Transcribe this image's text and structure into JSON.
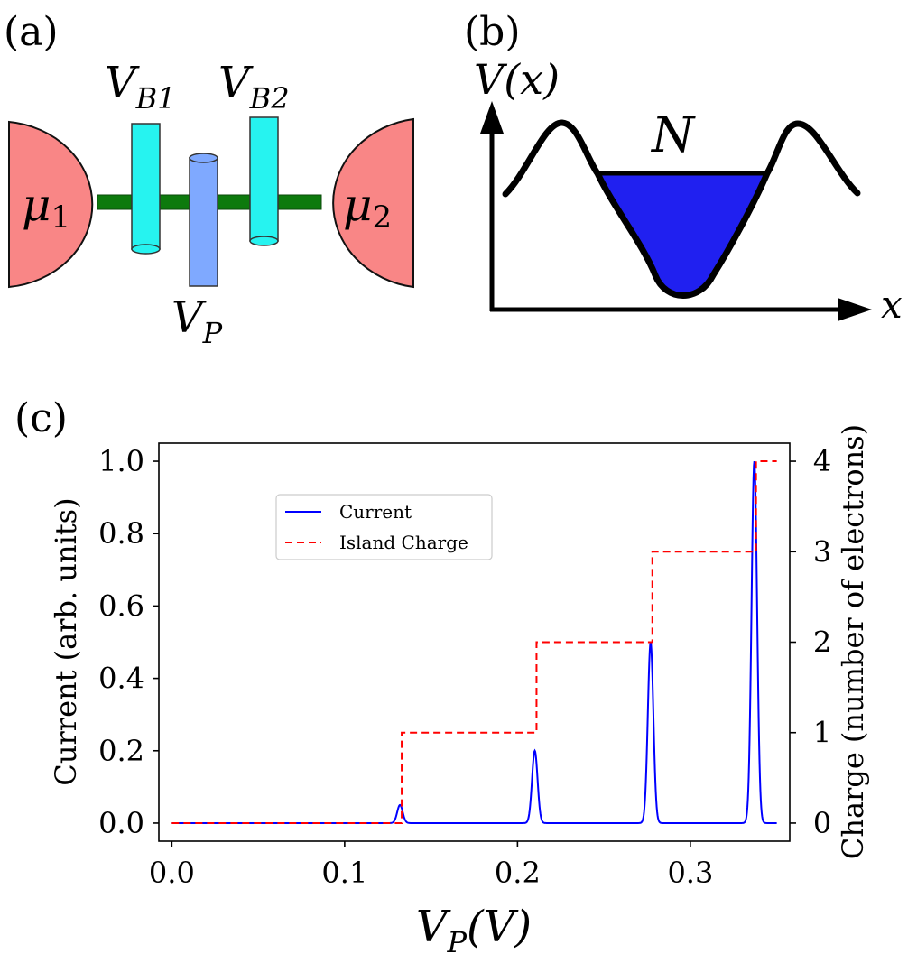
{
  "panels": {
    "a": {
      "label": "(a)",
      "mu1_sym": "μ",
      "mu1_sub": "1",
      "mu2_sym": "μ",
      "mu2_sub": "2",
      "vb1_sym": "V",
      "vb1_sub": "B1",
      "vb2_sym": "V",
      "vb2_sub": "B2",
      "vp_sym": "V",
      "vp_sub": "P",
      "colors": {
        "lead": "#f98686",
        "barrier_gate": "#26f3f0",
        "plunger_gate": "#7fa9ff",
        "wire": "#0d7a0d"
      }
    },
    "b": {
      "label": "(b)",
      "y_axis": "V(x)",
      "x_axis": "x",
      "fill_label": "N",
      "colors": {
        "fill": "#2020f0",
        "curve": "#000000"
      }
    },
    "c": {
      "label": "(c)"
    }
  },
  "chart_data": {
    "type": "line",
    "xlabel_sym": "V",
    "xlabel_sub": "P",
    "xlabel_tail": "(V)",
    "ylabel_left": "Current (arb. units)",
    "ylabel_right": "Charge (number of electrons)",
    "xlim": [
      -0.0075,
      0.3575
    ],
    "ylim_left": [
      -0.05,
      1.05
    ],
    "ylim_right": [
      -0.2,
      4.2
    ],
    "xticks": [
      0.0,
      0.1,
      0.2,
      0.3
    ],
    "xtick_labels": [
      "0.0",
      "0.1",
      "0.2",
      "0.3"
    ],
    "yticks_left": [
      0.0,
      0.2,
      0.4,
      0.6,
      0.8,
      1.0
    ],
    "ytick_labels_left": [
      "0.0",
      "0.2",
      "0.4",
      "0.6",
      "0.8",
      "1.0"
    ],
    "yticks_right": [
      0,
      1,
      2,
      3,
      4
    ],
    "ytick_labels_right": [
      "0",
      "1",
      "2",
      "3",
      "4"
    ],
    "legend": {
      "placement": "upper-left",
      "entries": [
        "Current",
        "Island Charge"
      ]
    },
    "series": [
      {
        "name": "Current",
        "axis": "left",
        "color": "#0000ff",
        "style": "solid",
        "x_range": [
          0.0,
          0.35
        ],
        "peaks": [
          {
            "x": 0.132,
            "height": 0.05,
            "width": 0.0016
          },
          {
            "x": 0.21,
            "height": 0.2,
            "width": 0.0016
          },
          {
            "x": 0.277,
            "height": 0.5,
            "width": 0.0016
          },
          {
            "x": 0.337,
            "height": 1.0,
            "width": 0.0016
          }
        ]
      },
      {
        "name": "Island Charge",
        "axis": "right",
        "color": "#ff0000",
        "style": "dashed",
        "x_range": [
          0.0,
          0.35
        ],
        "steps": [
          {
            "x": 0.133,
            "value": 1
          },
          {
            "x": 0.211,
            "value": 2
          },
          {
            "x": 0.278,
            "value": 3
          },
          {
            "x": 0.338,
            "value": 4
          }
        ]
      }
    ]
  }
}
